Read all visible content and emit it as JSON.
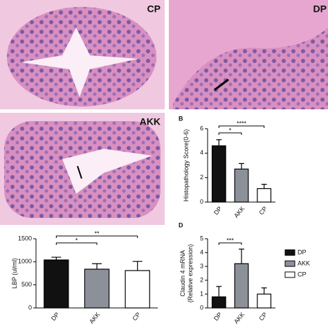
{
  "images": [
    {
      "label": "CP"
    },
    {
      "label": "DP"
    },
    {
      "label": "AKK"
    }
  ],
  "chart_data": [
    {
      "type": "bar",
      "panel": "B",
      "ylabel": "Histopathology Score(0-6)",
      "categories": [
        "DP",
        "AKK",
        "CP"
      ],
      "values": [
        4.6,
        2.7,
        1.1
      ],
      "errors": [
        0.5,
        0.45,
        0.35
      ],
      "colors": [
        "#111111",
        "#8c9099",
        "#ffffff"
      ],
      "ylim": [
        0,
        6
      ],
      "yticks": [
        0,
        2,
        4,
        6
      ],
      "significance": [
        {
          "between": [
            "DP",
            "AKK"
          ],
          "label": "*"
        },
        {
          "between": [
            "DP",
            "CP"
          ],
          "label": "****"
        }
      ]
    },
    {
      "type": "bar",
      "ylabel": "LBP (ul/ml)",
      "categories": [
        "DP",
        "AKK",
        "CP"
      ],
      "values": [
        1040,
        840,
        810
      ],
      "errors": [
        60,
        120,
        200
      ],
      "colors": [
        "#111111",
        "#8c9099",
        "#ffffff"
      ],
      "ylim": [
        0,
        1500
      ],
      "yticks": [
        0,
        500,
        1000,
        1500
      ],
      "significance": [
        {
          "between": [
            "DP",
            "AKK"
          ],
          "label": "*"
        },
        {
          "between": [
            "DP",
            "CP"
          ],
          "label": "**"
        }
      ]
    },
    {
      "type": "bar",
      "panel": "D",
      "ylabel": "Claudin 4 mRNA\n(Relative expression)",
      "categories": [
        "DP",
        "AKK",
        "CP"
      ],
      "values": [
        0.8,
        3.2,
        1.0
      ],
      "errors": [
        0.75,
        1.05,
        0.45
      ],
      "colors": [
        "#111111",
        "#8c9099",
        "#ffffff"
      ],
      "ylim": [
        0,
        5
      ],
      "yticks": [
        0,
        1,
        2,
        3,
        4,
        5
      ],
      "legend": true,
      "significance": [
        {
          "between": [
            "DP",
            "AKK"
          ],
          "label": "***"
        }
      ]
    }
  ]
}
